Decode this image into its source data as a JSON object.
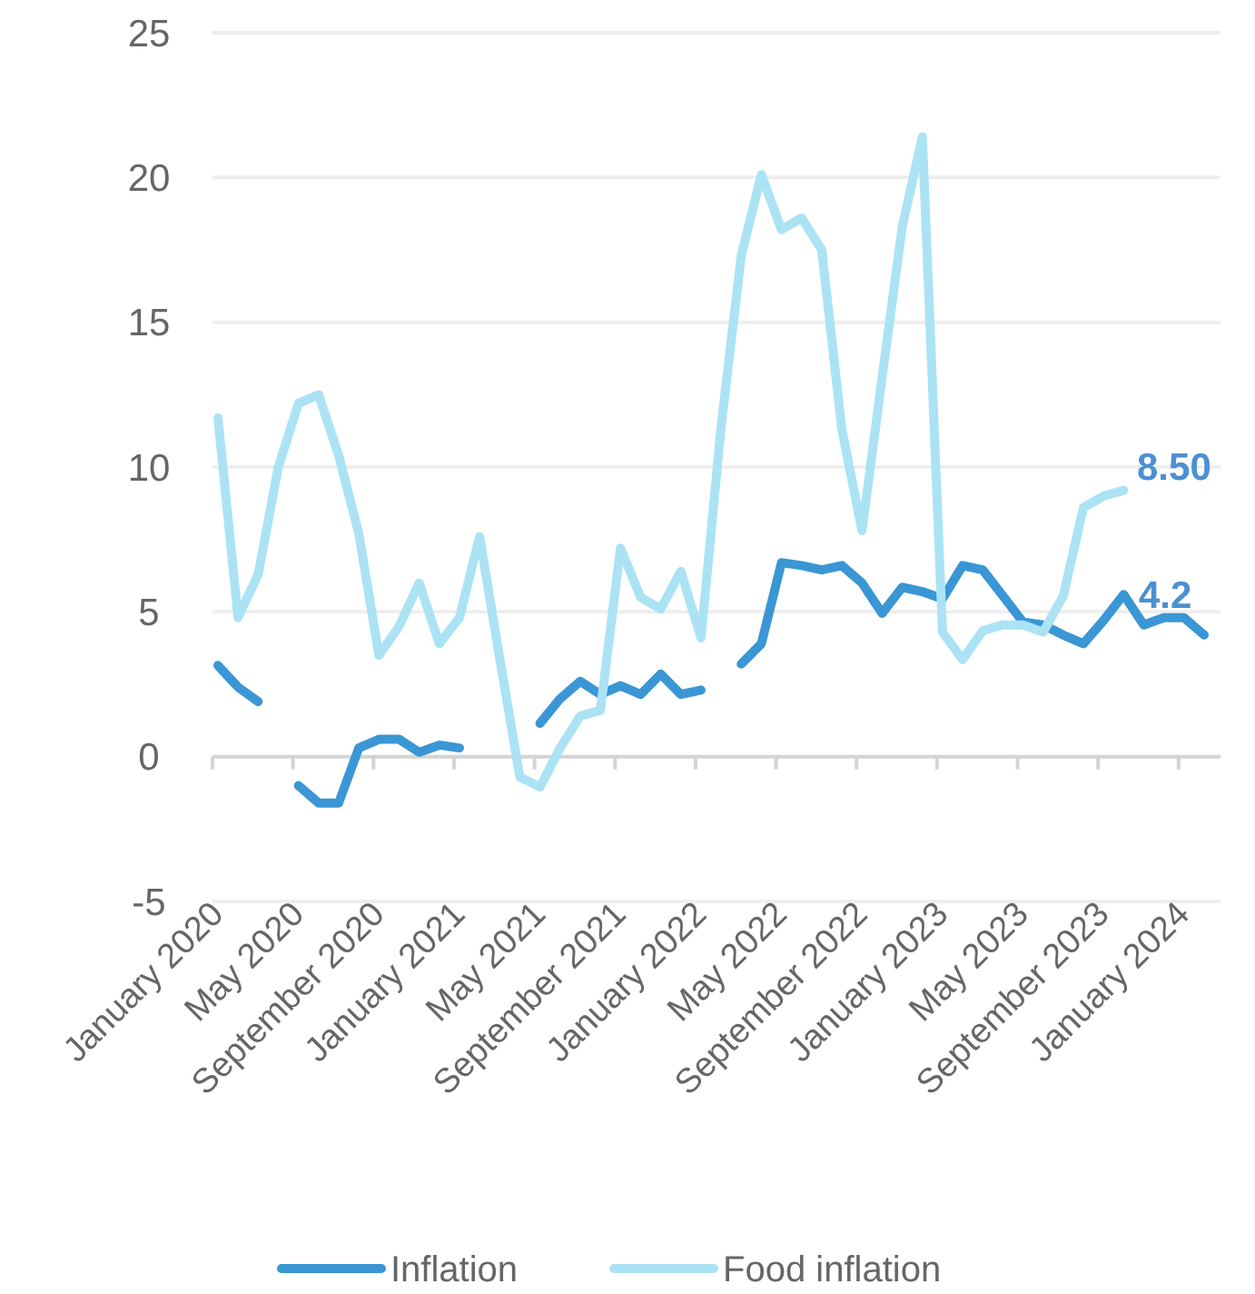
{
  "chart_data": {
    "type": "line",
    "categories": [
      "January 2020",
      null,
      null,
      null,
      "May 2020",
      null,
      null,
      null,
      "September 2020",
      null,
      null,
      null,
      "January 2021",
      null,
      null,
      null,
      "May 2021",
      null,
      null,
      null,
      "September 2021",
      null,
      null,
      null,
      "January 2022",
      null,
      null,
      null,
      "May 2022",
      null,
      null,
      null,
      "September 2022",
      null,
      null,
      null,
      "January 2023",
      null,
      null,
      null,
      "May 2023",
      null,
      null,
      null,
      "September 2023",
      null,
      null,
      null,
      "January 2024",
      null
    ],
    "series": [
      {
        "name": "Inflation",
        "color": "#3a96d4",
        "values": [
          3.15,
          2.4,
          1.9,
          null,
          -1.0,
          -1.6,
          -1.6,
          0.3,
          0.6,
          0.6,
          0.15,
          0.4,
          0.3,
          null,
          null,
          null,
          1.15,
          2.0,
          2.6,
          2.15,
          2.45,
          2.15,
          2.85,
          2.15,
          2.3,
          null,
          3.2,
          3.9,
          6.7,
          6.6,
          6.45,
          6.6,
          6.0,
          4.95,
          5.85,
          5.7,
          5.45,
          6.6,
          6.45,
          5.55,
          4.65,
          4.55,
          4.2,
          3.9,
          4.7,
          5.6,
          4.55,
          4.8,
          4.8,
          4.2
        ],
        "value_labels": [
          null,
          null,
          null,
          null,
          null,
          null,
          null,
          null,
          null,
          null,
          null,
          null,
          null,
          null,
          null,
          null,
          null,
          null,
          null,
          null,
          null,
          null,
          null,
          null,
          null,
          null,
          null,
          null,
          null,
          null,
          null,
          null,
          null,
          null,
          null,
          null,
          null,
          null,
          null,
          null,
          null,
          null,
          null,
          null,
          null,
          null,
          null,
          null,
          null,
          "4.2"
        ]
      },
      {
        "name": "Food inflation",
        "color": "#abe3f5",
        "values": [
          11.7,
          4.8,
          6.3,
          10.0,
          12.2,
          12.5,
          10.4,
          7.7,
          3.5,
          4.5,
          6.0,
          3.9,
          4.8,
          7.6,
          3.4,
          -0.7,
          -1.05,
          0.3,
          1.4,
          1.6,
          7.2,
          5.5,
          5.1,
          6.4,
          4.1,
          11.4,
          17.3,
          20.1,
          18.2,
          18.6,
          17.5,
          11.3,
          7.8,
          13.1,
          18.3,
          21.4,
          4.3,
          3.35,
          4.35,
          4.55,
          4.55,
          4.3,
          5.55,
          8.6,
          9.0,
          9.2,
          null,
          null,
          null,
          null
        ],
        "value_labels": [
          null,
          null,
          null,
          null,
          null,
          null,
          null,
          null,
          null,
          null,
          null,
          null,
          null,
          null,
          null,
          null,
          null,
          null,
          null,
          null,
          null,
          null,
          null,
          null,
          null,
          null,
          null,
          null,
          null,
          null,
          null,
          null,
          null,
          null,
          null,
          null,
          null,
          null,
          null,
          null,
          null,
          null,
          null,
          null,
          null,
          null,
          null,
          null,
          null,
          null
        ]
      }
    ],
    "ylim": [
      -5,
      25
    ],
    "yticks": [
      -5,
      0,
      5,
      10,
      15,
      20,
      25
    ],
    "grid": "y",
    "annotations": [
      "8.50"
    ],
    "legend": "bottom",
    "line_style": "solid",
    "marker": "none"
  }
}
